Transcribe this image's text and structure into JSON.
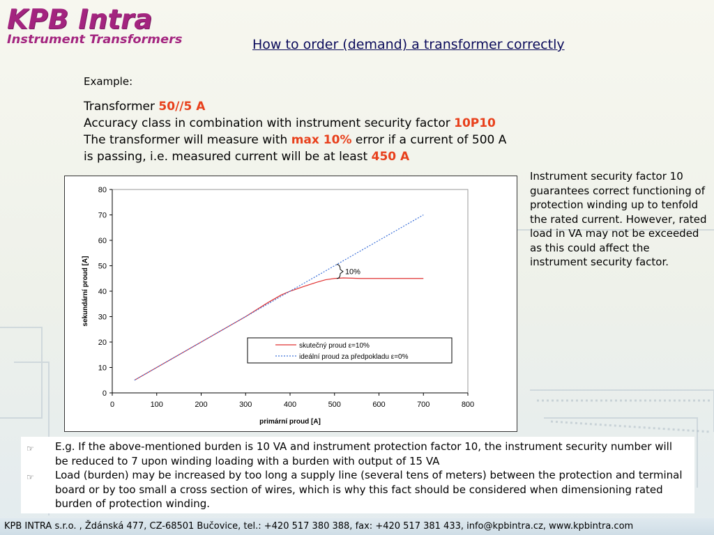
{
  "logo": {
    "main": "KPB Intra",
    "sub": "Instrument Transformers"
  },
  "title": "How to order (demand) a transformer correctly",
  "example_label": "Example:",
  "intro": {
    "line1_text": "Transformer ",
    "line1_value": "50//5 A",
    "line2_text": "Accuracy class in combination with instrument security factor ",
    "line2_value": "10P10",
    "line3_text_a": "The transformer will measure with ",
    "line3_value": "max 10%",
    "line3_text_b": " error if a current of 500 A",
    "line4_text": "is passing, i.e. measured current will be at least ",
    "line4_value": "450 A"
  },
  "side_note": "Instrument security factor 10 guarantees correct functioning of protection winding up to tenfold the rated current. However, rated load in VA may not be exceeded as this could affect the instrument security factor.",
  "chart_data": {
    "type": "line",
    "xlabel": "primární proud [A]",
    "ylabel": "sekundární proud [A]",
    "xlim": [
      0,
      800
    ],
    "ylim": [
      0,
      80
    ],
    "xticks": [
      0,
      100,
      200,
      300,
      400,
      500,
      600,
      700,
      800
    ],
    "yticks": [
      0,
      10,
      20,
      30,
      40,
      50,
      60,
      70,
      80
    ],
    "annotation": "10%",
    "legend_position": "bottom-right",
    "series": [
      {
        "name": "skutečný proud ε=10%",
        "color": "#e03030",
        "style": "solid",
        "x": [
          50,
          100,
          150,
          200,
          250,
          300,
          350,
          380,
          400,
          430,
          460,
          480,
          500,
          520,
          540,
          560,
          600,
          650,
          700
        ],
        "y": [
          5,
          10,
          15,
          20,
          25,
          30,
          35.5,
          38.5,
          40,
          41.8,
          43.5,
          44.5,
          45,
          45.2,
          45.1,
          45,
          45,
          45,
          45
        ]
      },
      {
        "name": "ideální proud za předpokladu ε=0%",
        "color": "#3a6fd8",
        "style": "dotted",
        "x": [
          50,
          700
        ],
        "y": [
          5,
          70
        ]
      }
    ]
  },
  "bullets": [
    "E.g. If the above-mentioned burden is 10 VA and instrument protection factor 10, the instrument security number will be reduced to 7 upon winding loading with a burden with output of 15 VA",
    "Load (burden) may be increased by too long a supply line (several tens of meters) between the protection and terminal board or by too small a cross section of wires, which is why this fact should be considered when dimensioning rated burden of protection winding."
  ],
  "footer": "KPB INTRA s.r.o. , Ždánská 477, CZ-68501 Bučovice, tel.: +420 517 380 388, fax: +420 517 381 433, info@kpbintra.cz, www.kpbintra.com"
}
